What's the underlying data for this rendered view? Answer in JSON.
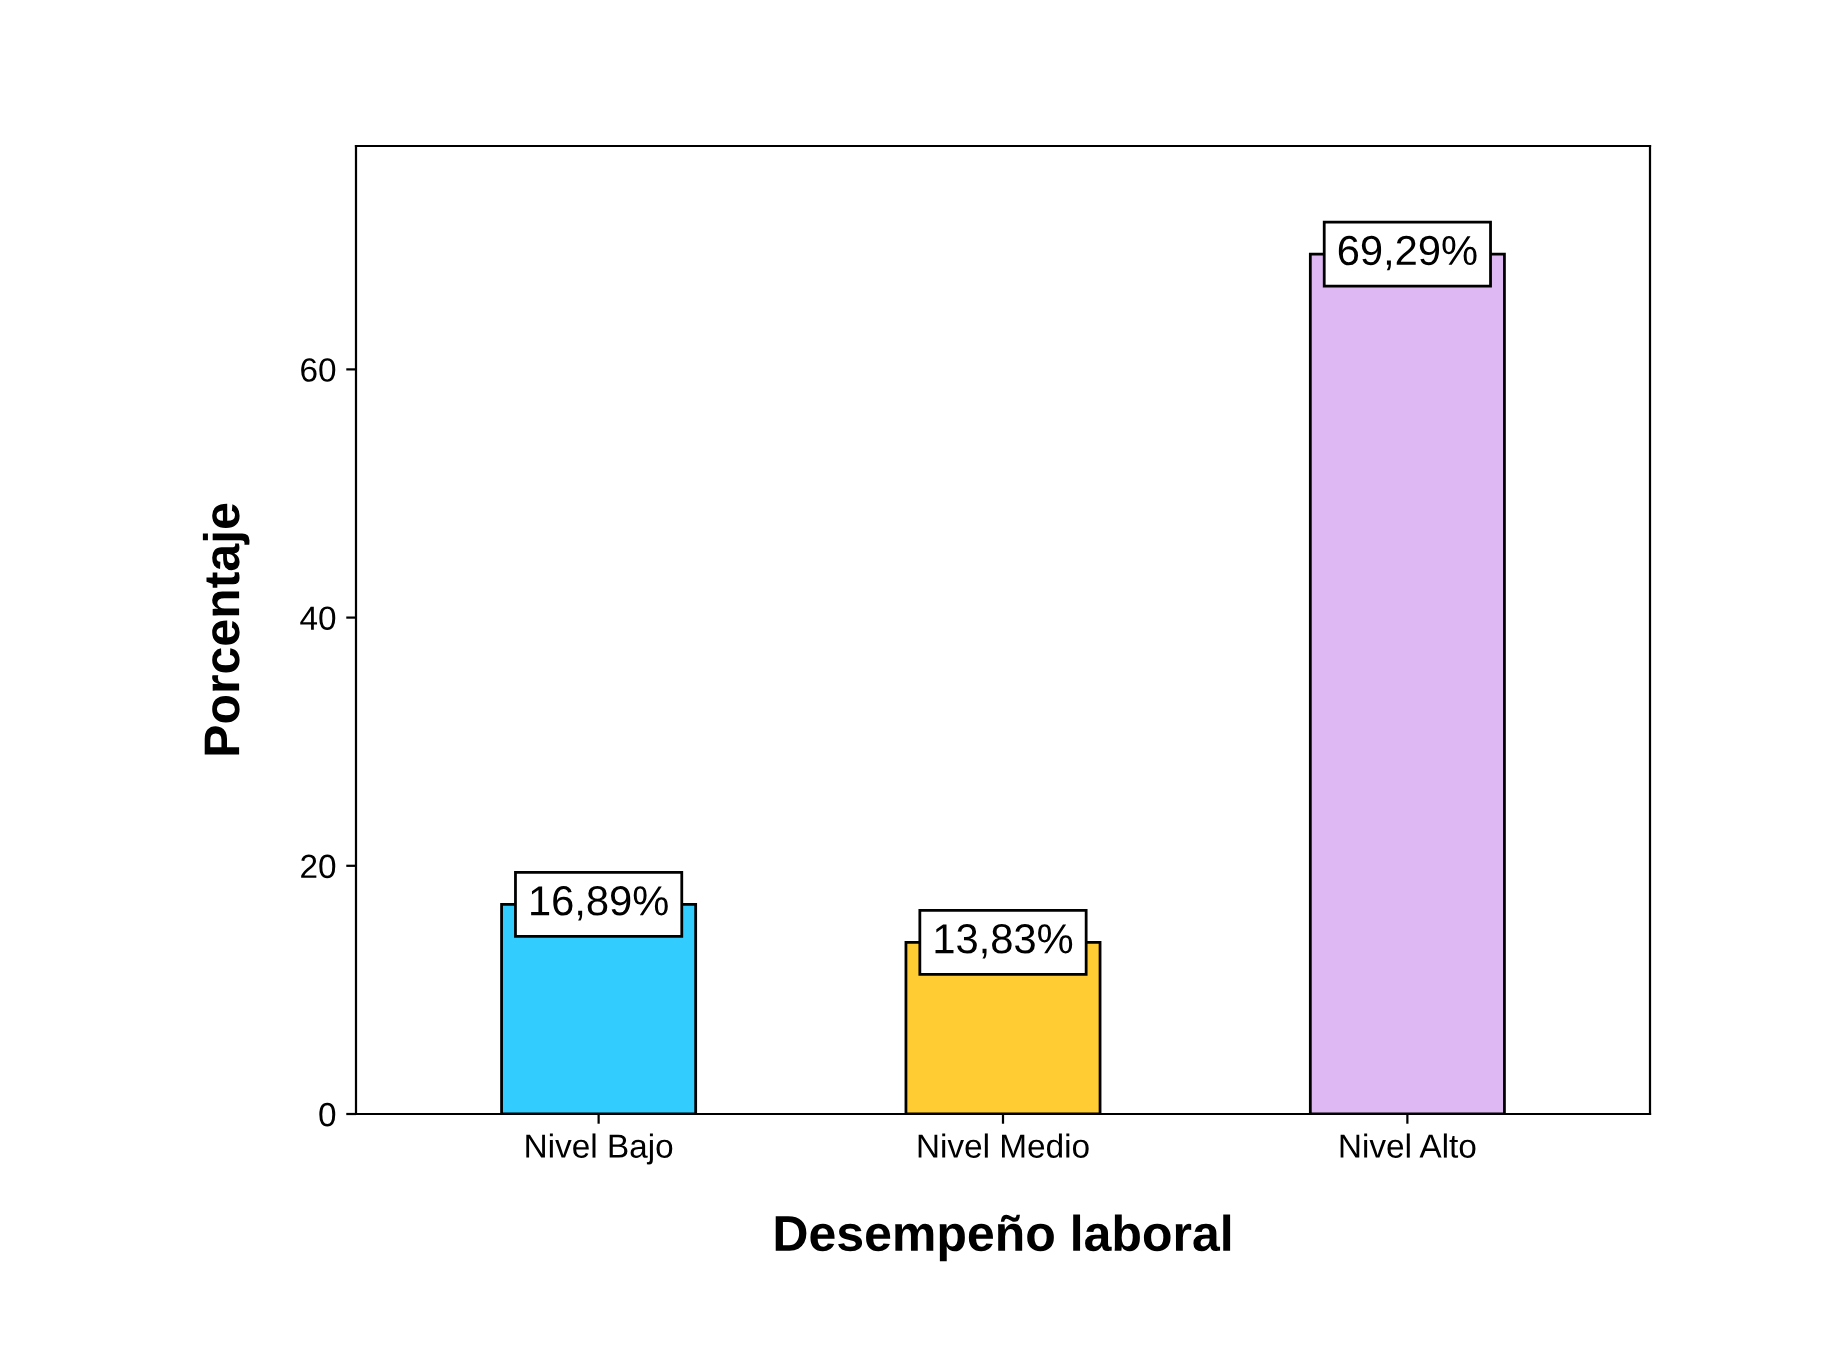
{
  "chart_data": {
    "type": "bar",
    "xlabel": "Desempeño laboral",
    "ylabel": "Porcentaje",
    "categories": [
      "Nivel Bajo",
      "Nivel Medio",
      "Nivel Alto"
    ],
    "values": [
      16.89,
      13.83,
      69.29
    ],
    "colors": [
      "#33ccff",
      "#ffcc33",
      "#ddb8f2"
    ],
    "value_labels": [
      "16,89%",
      "13,83%",
      "69,29%"
    ],
    "ylim": [
      0,
      78
    ],
    "yticks": [
      0,
      20,
      40,
      60
    ],
    "grid": false
  }
}
